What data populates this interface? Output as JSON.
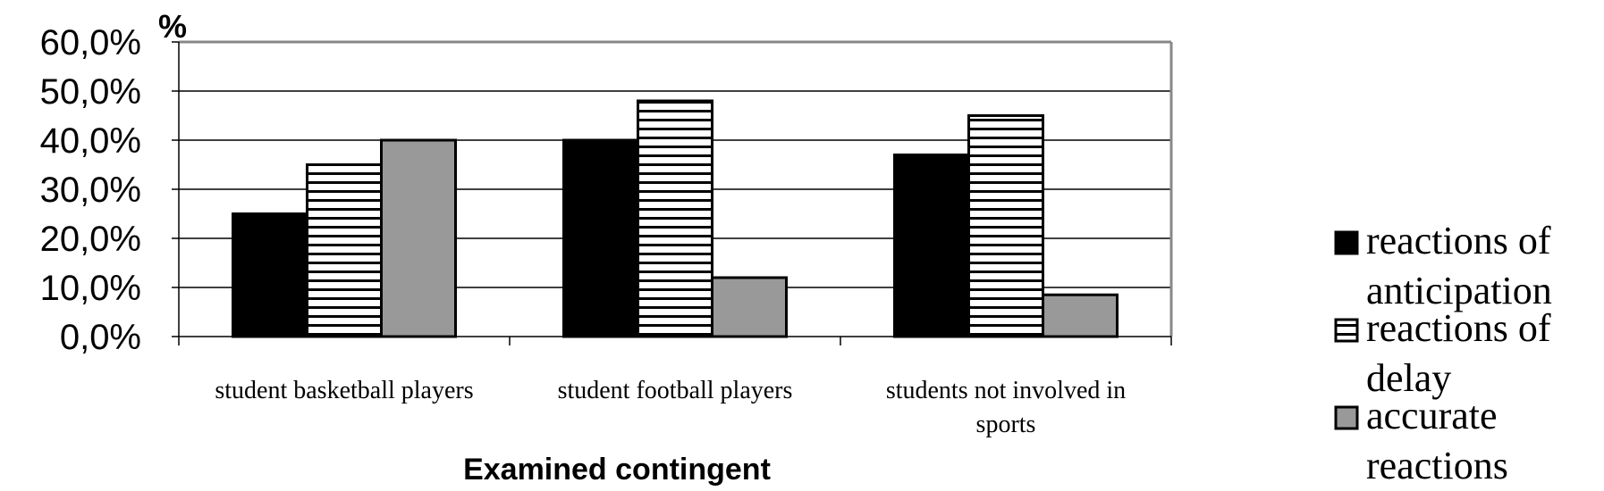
{
  "chart_data": {
    "type": "bar",
    "categories": [
      [
        "student basketball players"
      ],
      [
        "student football players"
      ],
      [
        "students not involved in",
        "sports"
      ]
    ],
    "series": [
      {
        "name": [
          "reactions of",
          "anticipation"
        ],
        "values": [
          25.0,
          40.0,
          37.0
        ],
        "pattern": "solid",
        "color": "#000000"
      },
      {
        "name": [
          "reactions of",
          "delay"
        ],
        "values": [
          35.0,
          48.0,
          45.0
        ],
        "pattern": "horizontal-stripes",
        "color": "#ffffff"
      },
      {
        "name": [
          "accurate",
          "reactions"
        ],
        "values": [
          40.0,
          12.0,
          8.5
        ],
        "pattern": "solid",
        "color": "#999999"
      }
    ],
    "ylabel_unit": "%",
    "xlabel": "Examined contingent",
    "ylim": [
      0,
      60
    ],
    "yticks": [
      "0,0%",
      "10,0%",
      "20,0%",
      "30,0%",
      "40,0%",
      "50,0%",
      "60,0%"
    ],
    "grid": true,
    "legend_position": "right"
  }
}
